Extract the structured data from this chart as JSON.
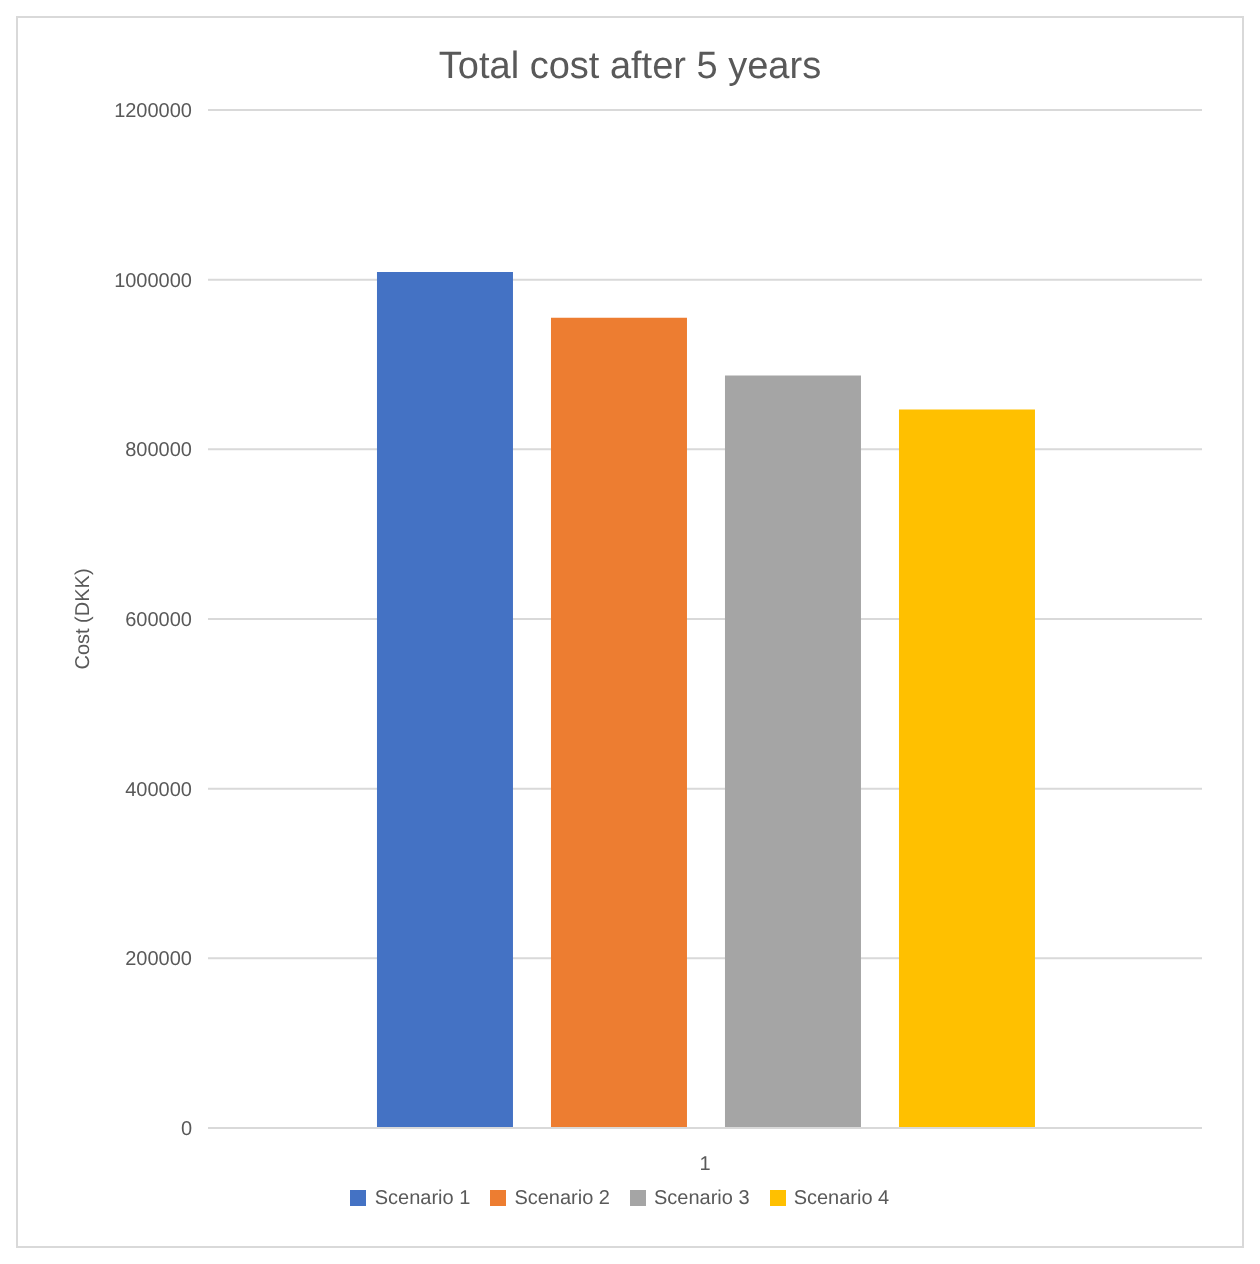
{
  "chart_data": {
    "type": "bar",
    "title": "Total cost after 5 years",
    "ylabel": "Cost (DKK)",
    "categories": [
      "1"
    ],
    "series": [
      {
        "name": "Scenario 1",
        "color": "#4472c4",
        "values": [
          1009000
        ]
      },
      {
        "name": "Scenario 2",
        "color": "#ed7d31",
        "values": [
          955000
        ]
      },
      {
        "name": "Scenario 3",
        "color": "#a5a5a5",
        "values": [
          887000
        ]
      },
      {
        "name": "Scenario 4",
        "color": "#ffc000",
        "values": [
          847000
        ]
      }
    ],
    "ylim": [
      0,
      1200000
    ],
    "yticks": [
      0,
      200000,
      400000,
      600000,
      800000,
      1000000,
      1200000
    ],
    "grid": "y",
    "legend": "bottom"
  }
}
